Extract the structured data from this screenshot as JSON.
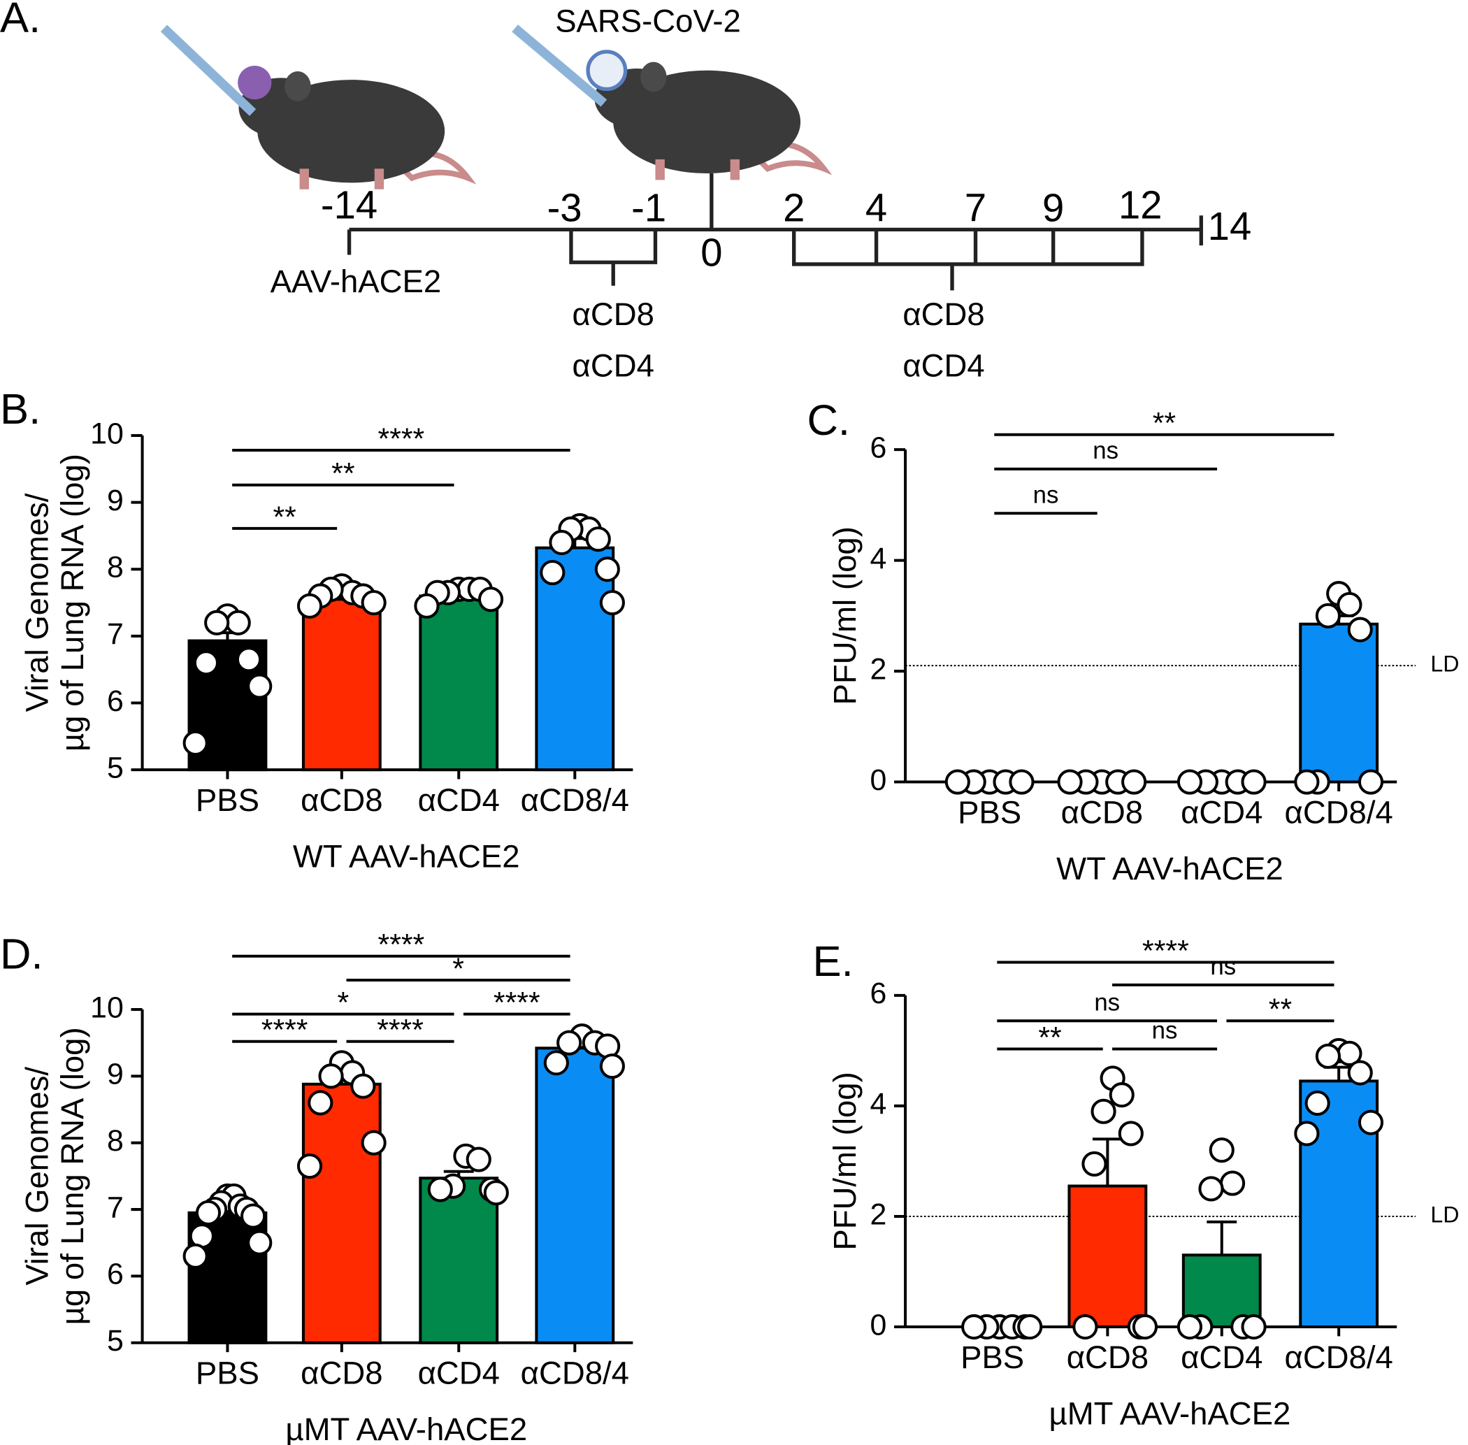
{
  "panel_labels": [
    "A.",
    "B.",
    "C.",
    "D.",
    "E."
  ],
  "timeline": {
    "virus_label": "SARS-CoV-2",
    "days": [
      "-14",
      "-3",
      "-1",
      "0",
      "2",
      "4",
      "7",
      "9",
      "12",
      "14"
    ],
    "start_label": "AAV-hACE2",
    "treatment_1": [
      "αCD8",
      "αCD4"
    ],
    "treatment_2": [
      "αCD8",
      "αCD4"
    ]
  },
  "chart_data": [
    {
      "type": "bar",
      "ylabel": [
        "Viral Genomes/",
        "µg of Lung RNA (log)"
      ],
      "xlabel": "WT AAV-hACE2",
      "categories": [
        "PBS",
        "αCD8",
        "αCD4",
        "αCD8/4"
      ],
      "colors": [
        "#000000",
        "#ff2a00",
        "#00894a",
        "#0a8cf5"
      ],
      "values": [
        6.93,
        7.55,
        7.6,
        8.32
      ],
      "errors": [
        0.12,
        0.06,
        0.04,
        0.14
      ],
      "points": [
        [
          7.3,
          7.2,
          7.2,
          6.65,
          6.6,
          6.25,
          5.4
        ],
        [
          7.75,
          7.65,
          7.7,
          7.6,
          7.6,
          7.5,
          7.45
        ],
        [
          7.7,
          7.7,
          7.65,
          7.7,
          7.65,
          7.55,
          7.45
        ],
        [
          8.65,
          8.6,
          8.6,
          8.45,
          8.4,
          8.0,
          7.95,
          7.5
        ]
      ],
      "ylim": [
        5,
        10
      ],
      "yticks": [
        5,
        6,
        7,
        8,
        9,
        10
      ],
      "comparisons": [
        {
          "groups": [
            "PBS",
            "αCD8"
          ],
          "y": 8.61,
          "label": "**"
        },
        {
          "groups": [
            "PBS",
            "αCD4"
          ],
          "y": 9.26,
          "label": "**"
        },
        {
          "groups": [
            "PBS",
            "αCD8/4"
          ],
          "y": 9.78,
          "label": "****"
        }
      ]
    },
    {
      "type": "bar",
      "ylabel": [
        "PFU/ml (log)"
      ],
      "xlabel": "WT AAV-hACE2",
      "categories": [
        "PBS",
        "αCD8",
        "αCD4",
        "αCD8/4"
      ],
      "colors": [
        "#000000",
        "#ff2a00",
        "#00894a",
        "#0a8cf5"
      ],
      "values": [
        0,
        0,
        0,
        2.85
      ],
      "errors": [
        0,
        0,
        0,
        0.15
      ],
      "points": [
        [
          0,
          0,
          0,
          0,
          0
        ],
        [
          0,
          0,
          0,
          0,
          0
        ],
        [
          0,
          0,
          0,
          0,
          0
        ],
        [
          3.4,
          3.2,
          3.0,
          2.75,
          0,
          0,
          0
        ]
      ],
      "ylim": [
        0,
        6
      ],
      "yticks": [
        0,
        2,
        4,
        6
      ],
      "ld": {
        "value": 2.1,
        "label": "LD"
      },
      "comparisons": [
        {
          "groups": [
            "PBS",
            "αCD8"
          ],
          "y": 4.85,
          "label": "ns"
        },
        {
          "groups": [
            "PBS",
            "αCD4"
          ],
          "y": 5.65,
          "label": "ns"
        },
        {
          "groups": [
            "PBS",
            "αCD8/4"
          ],
          "y": 6.27,
          "label": "**"
        }
      ]
    },
    {
      "type": "bar",
      "ylabel": [
        "Viral Genomes/",
        "µg of Lung RNA (log)"
      ],
      "xlabel": "µMT AAV-hACE2",
      "categories": [
        "PBS",
        "αCD8",
        "αCD4",
        "αCD8/4"
      ],
      "colors": [
        "#000000",
        "#ff2a00",
        "#00894a",
        "#0a8cf5"
      ],
      "values": [
        6.95,
        8.88,
        7.47,
        9.42
      ],
      "errors": [
        0.08,
        0.2,
        0.1,
        0.08
      ],
      "points": [
        [
          7.2,
          7.2,
          7.1,
          7.05,
          7.0,
          7.0,
          6.95,
          6.9,
          6.6,
          6.5,
          6.3
        ],
        [
          9.2,
          9.05,
          9.0,
          8.85,
          8.6,
          8.0,
          7.65
        ],
        [
          7.8,
          7.75,
          7.35,
          7.3,
          7.3,
          7.25
        ],
        [
          9.6,
          9.5,
          9.5,
          9.45,
          9.2,
          9.15
        ]
      ],
      "ylim": [
        5,
        10
      ],
      "yticks": [
        5,
        6,
        7,
        8,
        9,
        10
      ],
      "comparisons": [
        {
          "groups": [
            "PBS",
            "αCD8"
          ],
          "y": 9.52,
          "label": "****"
        },
        {
          "groups": [
            "αCD8",
            "αCD4"
          ],
          "y": 9.52,
          "label": "****"
        },
        {
          "groups": [
            "PBS",
            "αCD4"
          ],
          "y": 9.93,
          "label": "*"
        },
        {
          "groups": [
            "αCD4",
            "αCD8/4"
          ],
          "y": 9.93,
          "label": "****"
        },
        {
          "groups": [
            "αCD8",
            "αCD8/4"
          ],
          "y": 10.44,
          "label": "*"
        },
        {
          "groups": [
            "PBS",
            "αCD8/4"
          ],
          "y": 10.8,
          "label": "****"
        }
      ]
    },
    {
      "type": "bar",
      "ylabel": [
        "PFU/ml (log)"
      ],
      "xlabel": "µMT AAV-hACE2",
      "categories": [
        "PBS",
        "αCD8",
        "αCD4",
        "αCD8/4"
      ],
      "colors": [
        "#000000",
        "#ff2a00",
        "#00894a",
        "#0a8cf5"
      ],
      "values": [
        0,
        2.55,
        1.3,
        4.45
      ],
      "errors": [
        0,
        0.85,
        0.6,
        0.25
      ],
      "points": [
        [
          0,
          0,
          0,
          0,
          0,
          0
        ],
        [
          4.5,
          4.2,
          3.9,
          3.5,
          2.95,
          0,
          0,
          0
        ],
        [
          3.2,
          2.6,
          2.5,
          0,
          0,
          0,
          0
        ],
        [
          5.0,
          4.95,
          4.9,
          4.6,
          4.05,
          3.7,
          3.5
        ]
      ],
      "ylim": [
        0,
        6
      ],
      "yticks": [
        0,
        2,
        4,
        6
      ],
      "ld": {
        "value": 2.0,
        "label": "LD"
      },
      "comparisons": [
        {
          "groups": [
            "PBS",
            "αCD8"
          ],
          "y": 5.03,
          "label": "**"
        },
        {
          "groups": [
            "αCD8",
            "αCD4"
          ],
          "y": 5.03,
          "label": "ns"
        },
        {
          "groups": [
            "PBS",
            "αCD4"
          ],
          "y": 5.54,
          "label": "ns"
        },
        {
          "groups": [
            "αCD4",
            "αCD8/4"
          ],
          "y": 5.54,
          "label": "**"
        },
        {
          "groups": [
            "αCD8",
            "αCD8/4"
          ],
          "y": 6.19,
          "label": "ns"
        },
        {
          "groups": [
            "PBS",
            "αCD8/4"
          ],
          "y": 6.6,
          "label": "****"
        }
      ]
    }
  ]
}
